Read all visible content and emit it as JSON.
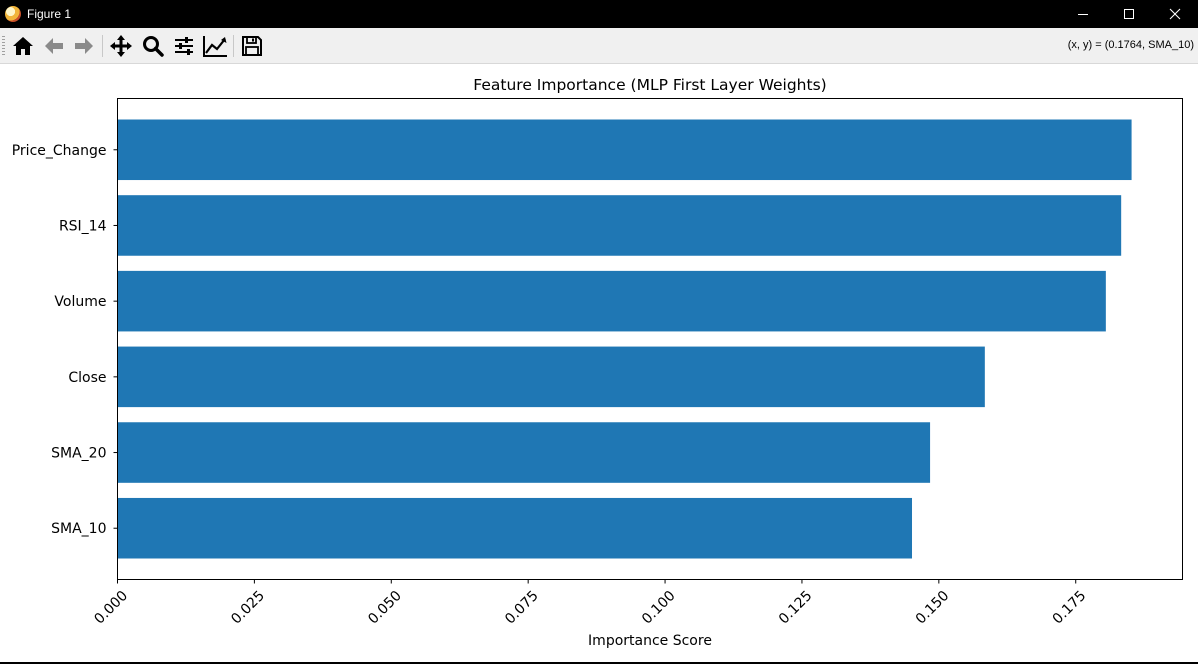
{
  "window": {
    "title": "Figure 1"
  },
  "toolbar": {
    "buttons": [
      {
        "icon": "home-icon"
      },
      {
        "icon": "back-arrow-icon"
      },
      {
        "icon": "forward-arrow-icon"
      },
      {
        "icon": "pan-move-icon"
      },
      {
        "icon": "zoom-magnifier-icon"
      },
      {
        "icon": "subplots-sliders-icon"
      },
      {
        "icon": "edit-axes-line-icon"
      },
      {
        "icon": "save-floppy-icon"
      }
    ],
    "coords": "(x, y) = (0.1764, SMA_10)"
  },
  "chart_data": {
    "type": "bar",
    "orientation": "horizontal",
    "title": "Feature Importance (MLP First Layer Weights)",
    "xlabel": "Importance Score",
    "ylabel": "",
    "categories": [
      "Price_Change",
      "RSI_14",
      "Volume",
      "Close",
      "SMA_20",
      "SMA_10"
    ],
    "values": [
      0.1852,
      0.1833,
      0.1805,
      0.1584,
      0.1484,
      0.1451
    ],
    "xlim": [
      0,
      0.1945
    ],
    "xticks": [
      0.0,
      0.025,
      0.05,
      0.075,
      0.1,
      0.125,
      0.15,
      0.175
    ],
    "xtick_labels": [
      "0.000",
      "0.025",
      "0.050",
      "0.075",
      "0.100",
      "0.125",
      "0.150",
      "0.175"
    ],
    "xtick_rotation": 45,
    "bar_color": "#1f77b4",
    "grid": false,
    "legend": "none"
  }
}
